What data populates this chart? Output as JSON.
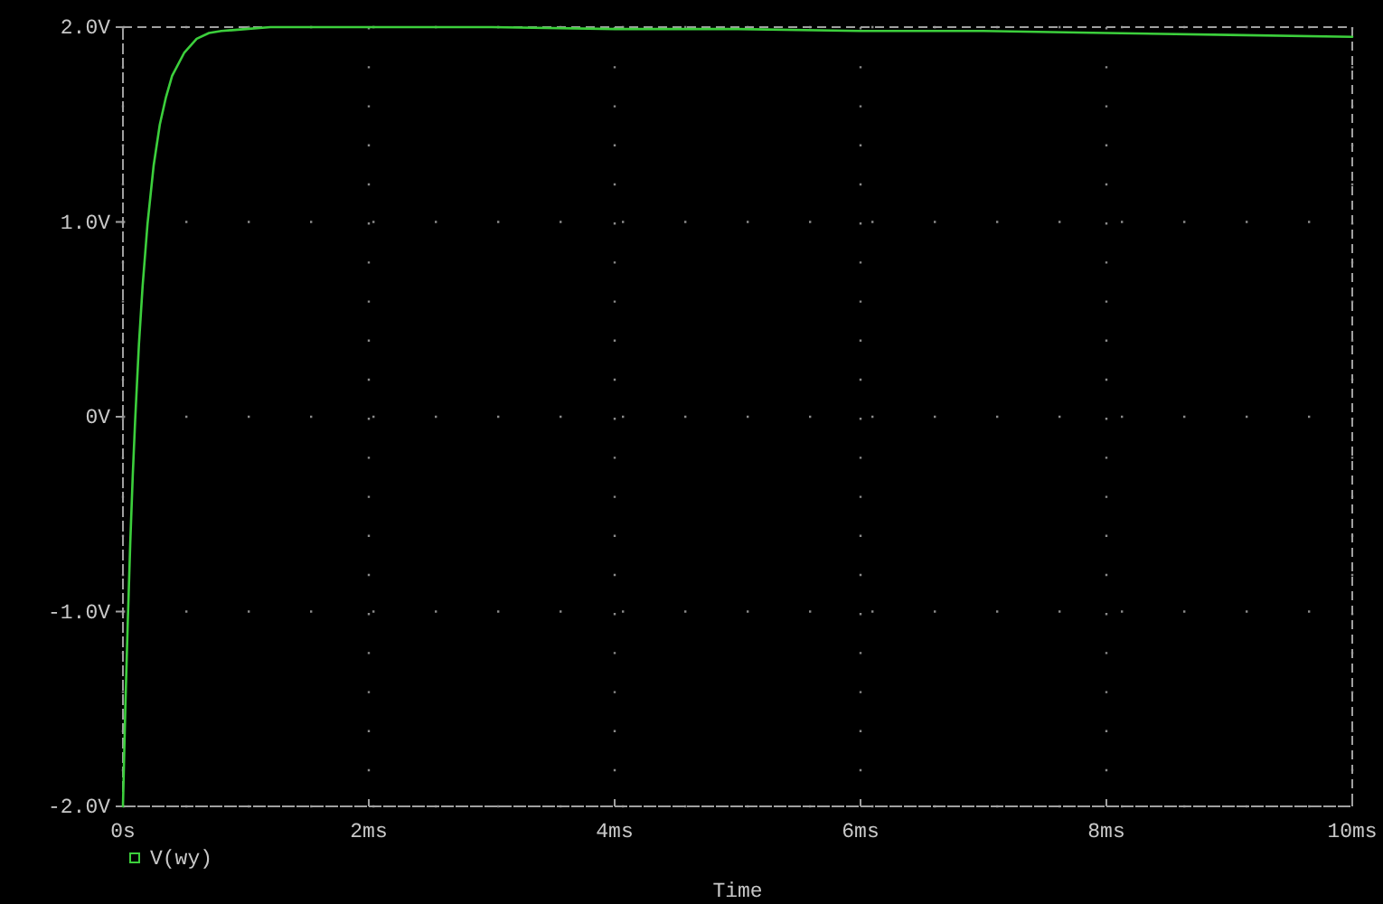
{
  "chart_data": {
    "type": "line",
    "xlabel": "Time",
    "series": [
      {
        "name": "V(wy)",
        "color": "#3ccf3c",
        "x": [
          0,
          0.02,
          0.04,
          0.06,
          0.08,
          0.1,
          0.13,
          0.16,
          0.2,
          0.25,
          0.3,
          0.35,
          0.4,
          0.5,
          0.6,
          0.7,
          0.8,
          1.0,
          1.2,
          1.5,
          2,
          3,
          4,
          5,
          6,
          7,
          8,
          9,
          10
        ],
        "values": [
          -2.0,
          -1.48,
          -1.04,
          -0.64,
          -0.3,
          -0.01,
          0.37,
          0.67,
          0.99,
          1.29,
          1.5,
          1.64,
          1.75,
          1.87,
          1.94,
          1.97,
          1.98,
          1.99,
          2.0,
          2.0,
          2.0,
          2.0,
          1.99,
          1.99,
          1.98,
          1.98,
          1.97,
          1.96,
          1.95
        ]
      }
    ],
    "xlim": [
      0,
      10
    ],
    "ylim": [
      -2.0,
      2.0
    ],
    "xticks": [
      {
        "value": 0,
        "label": "0s"
      },
      {
        "value": 2,
        "label": "2ms"
      },
      {
        "value": 4,
        "label": "4ms"
      },
      {
        "value": 6,
        "label": "6ms"
      },
      {
        "value": 8,
        "label": "8ms"
      },
      {
        "value": 10,
        "label": "10ms"
      }
    ],
    "yticks": [
      {
        "value": -2,
        "label": "-2.0V"
      },
      {
        "value": -1,
        "label": "-1.0V"
      },
      {
        "value": 0,
        "label": "0V"
      },
      {
        "value": 1,
        "label": "1.0V"
      },
      {
        "value": 2,
        "label": "2.0V"
      }
    ],
    "grid": true,
    "legend": "bottom left",
    "line_style": "solid"
  }
}
